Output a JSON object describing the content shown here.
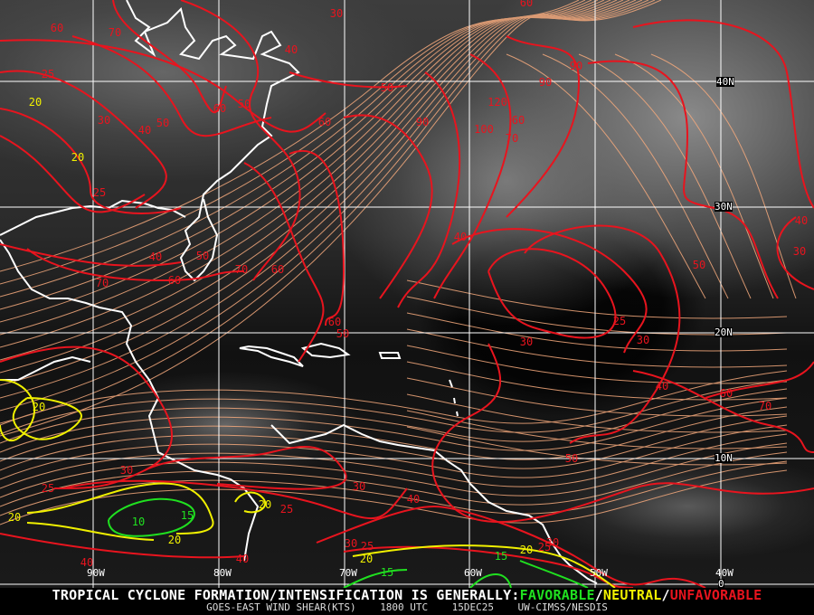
{
  "product": {
    "headline_prefix": "TROPICAL CYCLONE FORMATION/INTENSIFICATION IS GENERALLY:",
    "legend": {
      "favorable": "FAVORABLE",
      "separator_1": "/",
      "neutral": "NEUTRAL",
      "separator_2": "/",
      "unfavorable": "UNFAVORABLE"
    },
    "subtitle": {
      "product_name": "GOES-EAST WIND SHEAR(KTS)",
      "time": "1800 UTC",
      "date": "15DEC25",
      "source": "UW-CIMSS/NESDIS"
    }
  },
  "colors": {
    "favorable": "#20e020",
    "neutral": "#f0f000",
    "unfavorable": "#e8141e",
    "streamlines": "#f4a97c",
    "coastlines": "#ffffff",
    "grid": "#ffffff"
  },
  "grid_labels": {
    "longitudes": [
      "90W",
      "80W",
      "70W",
      "60W",
      "50W",
      "40W"
    ],
    "latitudes": [
      "40N",
      "30N",
      "20N",
      "10N",
      "0"
    ]
  },
  "contour_labels": [
    {
      "value": "60",
      "level": "unfavorable"
    },
    {
      "value": "70",
      "level": "unfavorable"
    },
    {
      "value": "40",
      "level": "unfavorable"
    },
    {
      "value": "30",
      "level": "unfavorable"
    },
    {
      "value": "25",
      "level": "unfavorable"
    },
    {
      "value": "30",
      "level": "unfavorable"
    },
    {
      "value": "40",
      "level": "unfavorable"
    },
    {
      "value": "50",
      "level": "unfavorable"
    },
    {
      "value": "60",
      "level": "unfavorable"
    },
    {
      "value": "50",
      "level": "unfavorable"
    },
    {
      "value": "60",
      "level": "unfavorable"
    },
    {
      "value": "50",
      "level": "unfavorable"
    },
    {
      "value": "25",
      "level": "unfavorable"
    },
    {
      "value": "40",
      "level": "unfavorable"
    },
    {
      "value": "50",
      "level": "unfavorable"
    },
    {
      "value": "70",
      "level": "unfavorable"
    },
    {
      "value": "60",
      "level": "unfavorable"
    },
    {
      "value": "60",
      "level": "unfavorable"
    },
    {
      "value": "70",
      "level": "unfavorable"
    },
    {
      "value": "20",
      "level": "neutral"
    },
    {
      "value": "20",
      "level": "neutral"
    },
    {
      "value": "60",
      "level": "unfavorable"
    },
    {
      "value": "90",
      "level": "unfavorable"
    },
    {
      "value": "90",
      "level": "unfavorable"
    },
    {
      "value": "120",
      "level": "unfavorable"
    },
    {
      "value": "100",
      "level": "unfavorable"
    },
    {
      "value": "60",
      "level": "unfavorable"
    },
    {
      "value": "70",
      "level": "unfavorable"
    },
    {
      "value": "90",
      "level": "unfavorable"
    },
    {
      "value": "40",
      "level": "unfavorable"
    },
    {
      "value": "50",
      "level": "unfavorable"
    },
    {
      "value": "40",
      "level": "unfavorable"
    },
    {
      "value": "30",
      "level": "unfavorable"
    },
    {
      "value": "60",
      "level": "unfavorable"
    },
    {
      "value": "50",
      "level": "unfavorable"
    },
    {
      "value": "20",
      "level": "neutral"
    },
    {
      "value": "30",
      "level": "unfavorable"
    },
    {
      "value": "25",
      "level": "unfavorable"
    },
    {
      "value": "20",
      "level": "neutral"
    },
    {
      "value": "10",
      "level": "favorable"
    },
    {
      "value": "15",
      "level": "favorable"
    },
    {
      "value": "20",
      "level": "neutral"
    },
    {
      "value": "20",
      "level": "neutral"
    },
    {
      "value": "25",
      "level": "unfavorable"
    },
    {
      "value": "30",
      "level": "unfavorable"
    },
    {
      "value": "40",
      "level": "unfavorable"
    },
    {
      "value": "40",
      "level": "unfavorable"
    },
    {
      "value": "30",
      "level": "unfavorable"
    },
    {
      "value": "25",
      "level": "unfavorable"
    },
    {
      "value": "20",
      "level": "neutral"
    },
    {
      "value": "15",
      "level": "favorable"
    },
    {
      "value": "25",
      "level": "unfavorable"
    },
    {
      "value": "30",
      "level": "unfavorable"
    },
    {
      "value": "30",
      "level": "unfavorable"
    },
    {
      "value": "40",
      "level": "unfavorable"
    },
    {
      "value": "60",
      "level": "unfavorable"
    },
    {
      "value": "70",
      "level": "unfavorable"
    },
    {
      "value": "50",
      "level": "unfavorable"
    },
    {
      "value": "40",
      "level": "unfavorable"
    },
    {
      "value": "20",
      "level": "neutral"
    },
    {
      "value": "25",
      "level": "unfavorable"
    },
    {
      "value": "30",
      "level": "unfavorable"
    },
    {
      "value": "15",
      "level": "favorable"
    }
  ]
}
